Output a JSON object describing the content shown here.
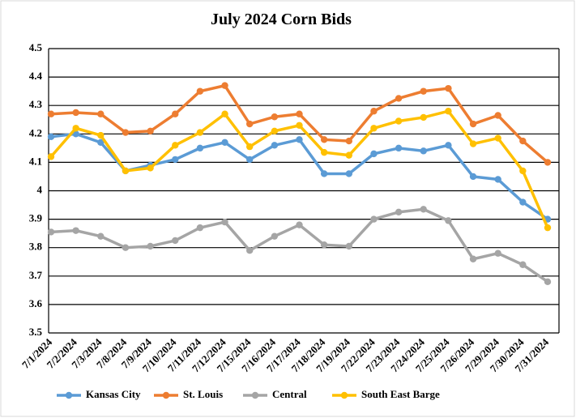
{
  "chart_data": {
    "type": "line",
    "title": "July 2024 Corn Bids",
    "categories": [
      "7/1/2024",
      "7/2/2024",
      "7/3/2024",
      "7/8/2024",
      "7/9/2024",
      "7/10/2024",
      "7/11/2024",
      "7/12/2024",
      "7/15/2024",
      "7/16/2024",
      "7/17/2024",
      "7/18/2024",
      "7/19/2024",
      "7/22/2024",
      "7/23/2024",
      "7/24/2024",
      "7/25/2024",
      "7/26/2024",
      "7/29/2024",
      "7/30/2024",
      "7/31/2024"
    ],
    "series": [
      {
        "name": "Kansas City",
        "color": "#5b9bd5",
        "values": [
          4.19,
          4.2,
          4.17,
          4.07,
          4.09,
          4.11,
          4.15,
          4.17,
          4.11,
          4.16,
          4.18,
          4.06,
          4.06,
          4.13,
          4.15,
          4.14,
          4.16,
          4.05,
          4.04,
          3.96,
          3.9
        ]
      },
      {
        "name": "St. Louis",
        "color": "#ed7d31",
        "values": [
          4.27,
          4.275,
          4.27,
          4.205,
          4.21,
          4.27,
          4.35,
          4.37,
          4.235,
          4.26,
          4.27,
          4.18,
          4.175,
          4.28,
          4.325,
          4.35,
          4.36,
          4.235,
          4.265,
          4.175,
          4.1
        ]
      },
      {
        "name": "Central",
        "color": "#a5a5a5",
        "values": [
          3.855,
          3.86,
          3.84,
          3.8,
          3.805,
          3.825,
          3.87,
          3.89,
          3.79,
          3.84,
          3.88,
          3.81,
          3.805,
          3.9,
          3.925,
          3.935,
          3.895,
          3.76,
          3.78,
          3.74,
          3.68
        ]
      },
      {
        "name": "South East Barge",
        "color": "#ffc000",
        "values": [
          4.12,
          4.22,
          4.195,
          4.07,
          4.08,
          4.16,
          4.205,
          4.27,
          4.155,
          4.21,
          4.23,
          4.135,
          4.125,
          4.22,
          4.245,
          4.258,
          4.28,
          4.165,
          4.185,
          4.07,
          3.87
        ]
      }
    ],
    "ylim": [
      3.5,
      4.5
    ],
    "yticks": [
      3.5,
      3.6,
      3.7,
      3.8,
      3.9,
      4,
      4.1,
      4.2,
      4.3,
      4.4,
      4.5
    ],
    "grid": true,
    "legend": "bottom"
  }
}
